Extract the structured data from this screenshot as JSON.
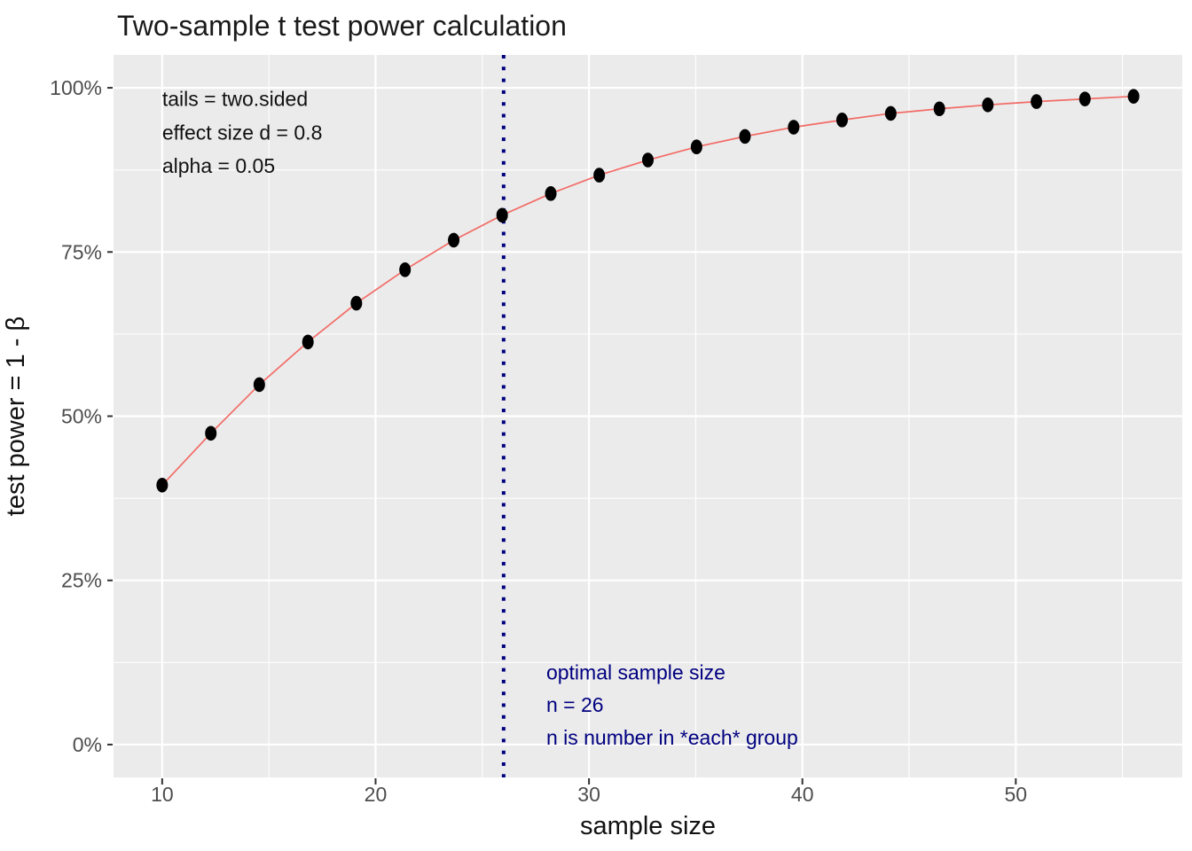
{
  "chart_data": {
    "type": "line",
    "title": "Two-sample t test power calculation",
    "xlabel": "sample size",
    "ylabel": "test power = 1 - β",
    "x": [
      10,
      12.28,
      14.55,
      16.83,
      19.1,
      21.38,
      23.66,
      25.93,
      28.21,
      30.48,
      32.76,
      35.04,
      37.31,
      39.59,
      41.86,
      44.14,
      46.42,
      48.69,
      50.97,
      53.24,
      55.52
    ],
    "power_percent": [
      39.5,
      47.4,
      54.8,
      61.3,
      67.2,
      72.3,
      76.8,
      80.6,
      83.9,
      86.7,
      89.0,
      91.0,
      92.6,
      94.0,
      95.1,
      96.1,
      96.8,
      97.4,
      97.9,
      98.3,
      98.7
    ],
    "xlim": [
      7.72,
      57.8
    ],
    "ylim_percent": [
      -5,
      105
    ],
    "x_major_ticks": [
      10,
      20,
      30,
      40,
      50
    ],
    "x_tick_labels": [
      "10",
      "20",
      "30",
      "40",
      "50"
    ],
    "x_minor_gridlines": [
      15,
      25,
      35,
      45,
      55
    ],
    "y_major_ticks_percent": [
      0,
      25,
      50,
      75,
      100
    ],
    "y_tick_labels": [
      "0%",
      "25%",
      "50%",
      "75%",
      "100%"
    ],
    "y_minor_gridlines_percent": [
      12.5,
      37.5,
      62.5,
      87.5
    ],
    "grid": true,
    "legend": "none",
    "vline": {
      "x": 26,
      "style": "dotted",
      "color": "#000080"
    },
    "annotations": {
      "params": {
        "lines": [
          "tails = two.sided",
          "effect size d = 0.8",
          "alpha = 0.05"
        ],
        "x": 10,
        "y_percent": [
          98.3,
          93.2,
          88.1
        ],
        "color": "#111111"
      },
      "optimal": {
        "lines": [
          "optimal sample size",
          "n = 26",
          "n is number in *each* group"
        ],
        "x": 28,
        "y_percent": [
          11.0,
          6.05,
          1.1
        ],
        "color": "#000080"
      }
    },
    "colors": {
      "panel_background": "#EBEBEB",
      "gridline": "#FFFFFF",
      "line": "#F26B66",
      "point": "#000000",
      "navy": "#000080",
      "tick_mark": "#333333",
      "tick_text": "#4D4D4D",
      "axis_title_text": "#111111"
    }
  }
}
